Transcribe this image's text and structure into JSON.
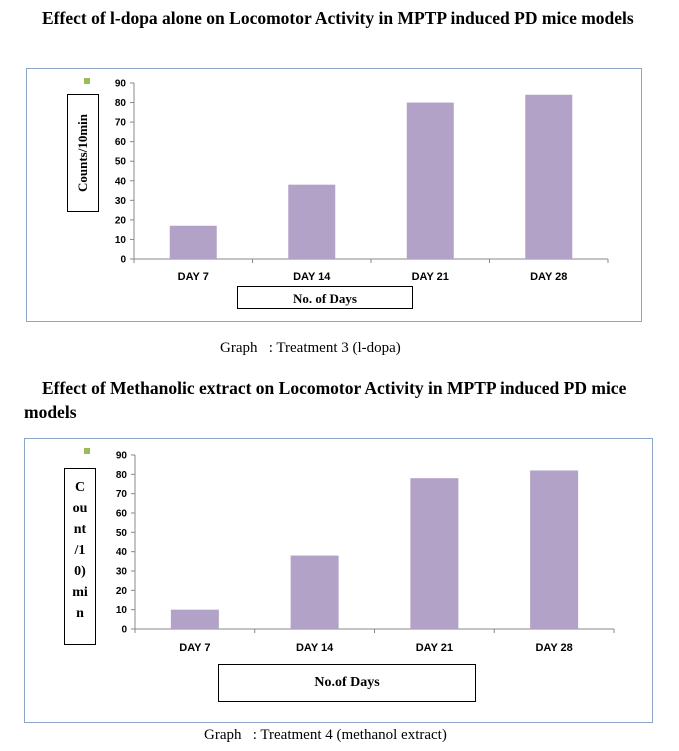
{
  "figure1": {
    "title": "Effect of l-dopa alone on Locomotor Activity in MPTP induced PD mice models",
    "caption": "Graph   : Treatment 3 (l-dopa)"
  },
  "figure2": {
    "title": "Effect of Methanolic extract on Locomotor Activity in MPTP induced PD mice models",
    "caption": "Graph   : Treatment 4 (methanol extract)"
  },
  "colors": {
    "bar": "#b3a2c7",
    "legend": "#9bbb59",
    "border": "#8ba6c8",
    "axis": "#888888"
  },
  "chart_data": [
    {
      "type": "bar",
      "categories": [
        "DAY 7",
        "DAY 14",
        "DAY 21",
        "DAY 28"
      ],
      "values": [
        17,
        38,
        80,
        84
      ],
      "xlabel": "No. of Days",
      "ylabel": "Counts/10min",
      "ylim": [
        0,
        90
      ],
      "yticks": [
        0,
        10,
        20,
        30,
        40,
        50,
        60,
        70,
        80,
        90
      ],
      "grid": false
    },
    {
      "type": "bar",
      "categories": [
        "DAY 7",
        "DAY 14",
        "DAY 21",
        "DAY 28"
      ],
      "values": [
        10,
        38,
        78,
        82
      ],
      "xlabel": "No.of Days",
      "ylabel": "Count/10min",
      "ylabel_wrapped": "C\nou\nnt\n/1\n0)\nmi\nn",
      "ylim": [
        0,
        90
      ],
      "yticks": [
        0,
        10,
        20,
        30,
        40,
        50,
        60,
        70,
        80,
        90
      ],
      "grid": false
    }
  ]
}
